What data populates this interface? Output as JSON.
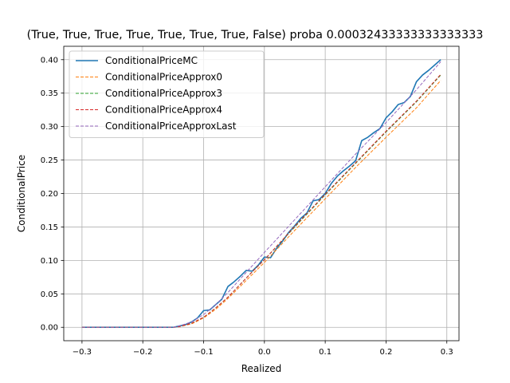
{
  "chart_data": {
    "type": "line",
    "title": "(True, True, True, True, True, True, True, False) proba 0.00032433333333333333",
    "xlabel": "Realized",
    "ylabel": "ConditionalPrice",
    "xlim": [
      -0.33,
      0.32
    ],
    "ylim": [
      -0.02,
      0.42
    ],
    "xticks": [
      -0.3,
      -0.2,
      -0.1,
      0.0,
      0.1,
      0.2,
      0.3
    ],
    "xtick_labels": [
      "−0.3",
      "−0.2",
      "−0.1",
      "0.0",
      "0.1",
      "0.2",
      "0.3"
    ],
    "yticks": [
      0.0,
      0.05,
      0.1,
      0.15,
      0.2,
      0.25,
      0.3,
      0.35,
      0.4
    ],
    "ytick_labels": [
      "0.00",
      "0.05",
      "0.10",
      "0.15",
      "0.20",
      "0.25",
      "0.30",
      "0.35",
      "0.40"
    ],
    "grid": true,
    "legend_position": "top-left",
    "series": [
      {
        "name": "ConditionalPriceMC",
        "color": "#1f77b4",
        "dash": "solid",
        "points": [
          [
            -0.3,
            0.0
          ],
          [
            -0.2,
            0.0
          ],
          [
            -0.16,
            0.0
          ],
          [
            -0.15,
            0.0
          ],
          [
            -0.14,
            0.002
          ],
          [
            -0.13,
            0.004
          ],
          [
            -0.12,
            0.008
          ],
          [
            -0.11,
            0.014
          ],
          [
            -0.1,
            0.025
          ],
          [
            -0.09,
            0.026
          ],
          [
            -0.08,
            0.034
          ],
          [
            -0.07,
            0.042
          ],
          [
            -0.06,
            0.061
          ],
          [
            -0.05,
            0.068
          ],
          [
            -0.04,
            0.076
          ],
          [
            -0.03,
            0.085
          ],
          [
            -0.02,
            0.084
          ],
          [
            -0.01,
            0.093
          ],
          [
            0.0,
            0.105
          ],
          [
            0.01,
            0.104
          ],
          [
            0.02,
            0.118
          ],
          [
            0.03,
            0.129
          ],
          [
            0.04,
            0.142
          ],
          [
            0.05,
            0.152
          ],
          [
            0.06,
            0.163
          ],
          [
            0.07,
            0.171
          ],
          [
            0.08,
            0.189
          ],
          [
            0.09,
            0.191
          ],
          [
            0.1,
            0.2
          ],
          [
            0.11,
            0.215
          ],
          [
            0.12,
            0.226
          ],
          [
            0.13,
            0.234
          ],
          [
            0.14,
            0.241
          ],
          [
            0.15,
            0.249
          ],
          [
            0.16,
            0.279
          ],
          [
            0.17,
            0.284
          ],
          [
            0.18,
            0.291
          ],
          [
            0.19,
            0.297
          ],
          [
            0.2,
            0.313
          ],
          [
            0.21,
            0.322
          ],
          [
            0.22,
            0.333
          ],
          [
            0.23,
            0.336
          ],
          [
            0.24,
            0.345
          ],
          [
            0.25,
            0.367
          ],
          [
            0.26,
            0.377
          ],
          [
            0.27,
            0.384
          ],
          [
            0.28,
            0.392
          ],
          [
            0.29,
            0.4
          ]
        ]
      },
      {
        "name": "ConditionalPriceApprox0",
        "color": "#ff7f0e",
        "dash": "dashed",
        "points": [
          [
            -0.3,
            0.0
          ],
          [
            -0.2,
            0.0
          ],
          [
            -0.15,
            0.0
          ],
          [
            -0.14,
            0.001
          ],
          [
            -0.12,
            0.005
          ],
          [
            -0.1,
            0.014
          ],
          [
            -0.08,
            0.027
          ],
          [
            -0.06,
            0.043
          ],
          [
            -0.04,
            0.061
          ],
          [
            -0.02,
            0.079
          ],
          [
            0.0,
            0.097
          ],
          [
            0.05,
            0.145
          ],
          [
            0.1,
            0.192
          ],
          [
            0.15,
            0.239
          ],
          [
            0.2,
            0.284
          ],
          [
            0.25,
            0.328
          ],
          [
            0.29,
            0.369
          ]
        ]
      },
      {
        "name": "ConditionalPriceApprox3",
        "color": "#2ca02c",
        "dash": "dashed",
        "points": [
          [
            -0.3,
            0.0
          ],
          [
            -0.2,
            0.0
          ],
          [
            -0.15,
            0.0
          ],
          [
            -0.14,
            0.001
          ],
          [
            -0.12,
            0.006
          ],
          [
            -0.1,
            0.015
          ],
          [
            -0.08,
            0.029
          ],
          [
            -0.06,
            0.045
          ],
          [
            -0.04,
            0.064
          ],
          [
            -0.02,
            0.083
          ],
          [
            0.0,
            0.101
          ],
          [
            0.05,
            0.15
          ],
          [
            0.1,
            0.198
          ],
          [
            0.15,
            0.245
          ],
          [
            0.2,
            0.292
          ],
          [
            0.25,
            0.337
          ],
          [
            0.29,
            0.377
          ]
        ]
      },
      {
        "name": "ConditionalPriceApprox4",
        "color": "#d62728",
        "dash": "dashed",
        "points": [
          [
            -0.3,
            0.0
          ],
          [
            -0.2,
            0.0
          ],
          [
            -0.15,
            0.0
          ],
          [
            -0.14,
            0.001
          ],
          [
            -0.12,
            0.006
          ],
          [
            -0.1,
            0.015
          ],
          [
            -0.08,
            0.029
          ],
          [
            -0.06,
            0.045
          ],
          [
            -0.04,
            0.064
          ],
          [
            -0.02,
            0.083
          ],
          [
            0.0,
            0.101
          ],
          [
            0.05,
            0.151
          ],
          [
            0.1,
            0.199
          ],
          [
            0.15,
            0.246
          ],
          [
            0.2,
            0.293
          ],
          [
            0.25,
            0.338
          ],
          [
            0.29,
            0.378
          ]
        ]
      },
      {
        "name": "ConditionalPriceApproxLast",
        "color": "#9467bd",
        "dash": "dashed",
        "points": [
          [
            -0.3,
            0.0
          ],
          [
            -0.2,
            0.0
          ],
          [
            -0.15,
            0.0
          ],
          [
            -0.14,
            0.002
          ],
          [
            -0.12,
            0.008
          ],
          [
            -0.1,
            0.019
          ],
          [
            -0.08,
            0.034
          ],
          [
            -0.06,
            0.052
          ],
          [
            -0.04,
            0.072
          ],
          [
            -0.02,
            0.092
          ],
          [
            0.0,
            0.112
          ],
          [
            0.05,
            0.161
          ],
          [
            0.1,
            0.21
          ],
          [
            0.15,
            0.259
          ],
          [
            0.2,
            0.306
          ],
          [
            0.25,
            0.355
          ],
          [
            0.29,
            0.397
          ]
        ]
      }
    ]
  }
}
